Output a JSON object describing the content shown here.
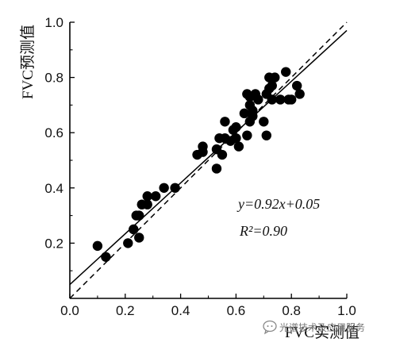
{
  "chart_data": {
    "type": "scatter",
    "title": "",
    "xlabel": "FVC实测值",
    "ylabel": "FVC预测值",
    "xlim": [
      0,
      1.0
    ],
    "ylim": [
      0,
      1.0
    ],
    "xticks": [
      "0.0",
      "0.2",
      "0.4",
      "0.6",
      "0.8",
      "1.0"
    ],
    "yticks": [
      "0.2",
      "0.4",
      "0.6",
      "0.8",
      "1.0"
    ],
    "grid": false,
    "points": [
      [
        0.1,
        0.19
      ],
      [
        0.13,
        0.15
      ],
      [
        0.21,
        0.2
      ],
      [
        0.23,
        0.25
      ],
      [
        0.24,
        0.3
      ],
      [
        0.25,
        0.22
      ],
      [
        0.25,
        0.3
      ],
      [
        0.26,
        0.34
      ],
      [
        0.28,
        0.34
      ],
      [
        0.28,
        0.37
      ],
      [
        0.31,
        0.37
      ],
      [
        0.34,
        0.4
      ],
      [
        0.38,
        0.4
      ],
      [
        0.46,
        0.52
      ],
      [
        0.48,
        0.53
      ],
      [
        0.48,
        0.55
      ],
      [
        0.53,
        0.47
      ],
      [
        0.53,
        0.54
      ],
      [
        0.54,
        0.58
      ],
      [
        0.55,
        0.52
      ],
      [
        0.56,
        0.58
      ],
      [
        0.56,
        0.64
      ],
      [
        0.58,
        0.57
      ],
      [
        0.59,
        0.61
      ],
      [
        0.6,
        0.58
      ],
      [
        0.6,
        0.62
      ],
      [
        0.61,
        0.55
      ],
      [
        0.63,
        0.67
      ],
      [
        0.64,
        0.59
      ],
      [
        0.64,
        0.74
      ],
      [
        0.65,
        0.64
      ],
      [
        0.65,
        0.7
      ],
      [
        0.65,
        0.73
      ],
      [
        0.66,
        0.66
      ],
      [
        0.66,
        0.68
      ],
      [
        0.67,
        0.74
      ],
      [
        0.68,
        0.72
      ],
      [
        0.7,
        0.64
      ],
      [
        0.71,
        0.59
      ],
      [
        0.71,
        0.74
      ],
      [
        0.72,
        0.8
      ],
      [
        0.72,
        0.76
      ],
      [
        0.73,
        0.72
      ],
      [
        0.73,
        0.77
      ],
      [
        0.74,
        0.8
      ],
      [
        0.76,
        0.72
      ],
      [
        0.78,
        0.82
      ],
      [
        0.79,
        0.72
      ],
      [
        0.8,
        0.72
      ],
      [
        0.82,
        0.77
      ],
      [
        0.83,
        0.74
      ]
    ],
    "fit_line": {
      "slope": 0.92,
      "intercept": 0.05,
      "style": "solid"
    },
    "reference_line": {
      "slope": 1.0,
      "intercept": 0.0,
      "style": "dashed"
    },
    "equation_text": "y=0.92x+0.05",
    "r2_text": "R²=0.90",
    "marker_color": "#000000"
  },
  "watermark": {
    "text": "光谱技术及应用服务",
    "icon": "wechat-bubble-icon"
  }
}
